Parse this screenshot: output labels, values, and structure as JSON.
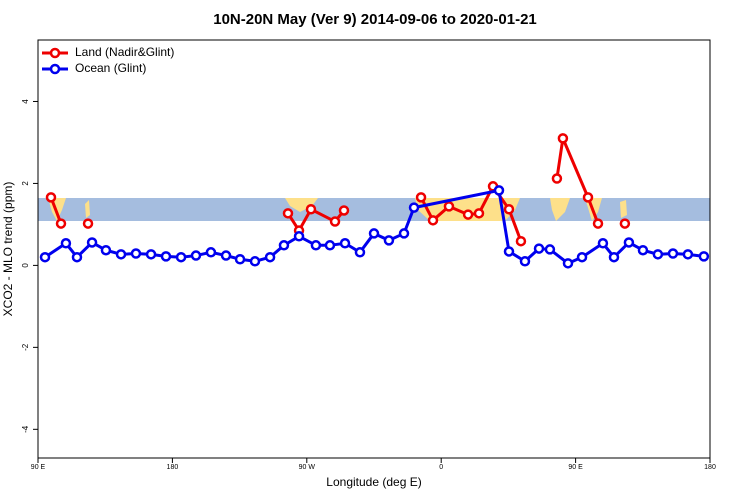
{
  "chart_data": {
    "type": "line",
    "title": "10N-20N May (Ver 9)   2014-09-06 to 2020-01-21",
    "xlabel": "Longitude (deg E)",
    "ylabel": "XCO2 - MLO trend (ppm)",
    "xlim": [
      90,
      540
    ],
    "ylim": [
      -4.7,
      5.5
    ],
    "xticks": [
      {
        "value": 90,
        "label": "90 E"
      },
      {
        "value": 180,
        "label": "180"
      },
      {
        "value": 270,
        "label": "90 W"
      },
      {
        "value": 360,
        "label": "0"
      },
      {
        "value": 450,
        "label": "90 E"
      },
      {
        "value": 540,
        "label": "180"
      }
    ],
    "yticks": [
      -4,
      -2,
      0,
      2,
      4
    ],
    "legend": "top-left",
    "series": [
      {
        "name": "Land (Nadir&Glint)",
        "color": "#ee0000",
        "x": [
          98.7,
          105.4,
          null,
          123.5,
          null,
          257.4,
          264.8,
          272.8,
          288.9,
          294.9,
          null,
          346.5,
          354.5,
          365.2,
          378.0,
          385.3,
          394.7,
          405.4,
          413.4,
          null,
          437.5,
          441.5,
          458.3,
          465.0,
          null,
          483.0
        ],
        "values": [
          1.66,
          1.02,
          null,
          1.02,
          null,
          1.27,
          0.85,
          1.37,
          1.07,
          1.34,
          null,
          1.66,
          1.1,
          1.44,
          1.24,
          1.27,
          1.93,
          1.37,
          0.59,
          null,
          2.12,
          3.1,
          1.66,
          1.02,
          null,
          1.02
        ]
      },
      {
        "name": "Ocean (Glint)",
        "color": "#0000ee",
        "x": [
          94.7,
          108.7,
          116.1,
          126.2,
          135.5,
          145.6,
          155.6,
          165.7,
          175.7,
          185.8,
          195.8,
          205.8,
          215.9,
          225.3,
          235.3,
          245.4,
          254.7,
          264.8,
          276.1,
          285.5,
          295.6,
          305.6,
          315.0,
          325.0,
          335.1,
          341.8,
          398.7,
          405.4,
          416.1,
          425.5,
          432.8,
          444.9,
          454.3,
          468.3,
          475.7,
          485.7,
          495.1,
          505.1,
          515.2,
          525.2,
          535.9
        ],
        "values": [
          0.2,
          0.54,
          0.2,
          0.56,
          0.37,
          0.27,
          0.29,
          0.27,
          0.22,
          0.2,
          0.24,
          0.32,
          0.24,
          0.15,
          0.1,
          0.2,
          0.49,
          0.71,
          0.49,
          0.49,
          0.54,
          0.32,
          0.78,
          0.61,
          0.78,
          1.41,
          1.83,
          0.34,
          0.1,
          0.41,
          0.39,
          0.05,
          0.2,
          0.54,
          0.2,
          0.56,
          0.37,
          0.27,
          0.29,
          0.27,
          0.22
        ]
      }
    ]
  }
}
